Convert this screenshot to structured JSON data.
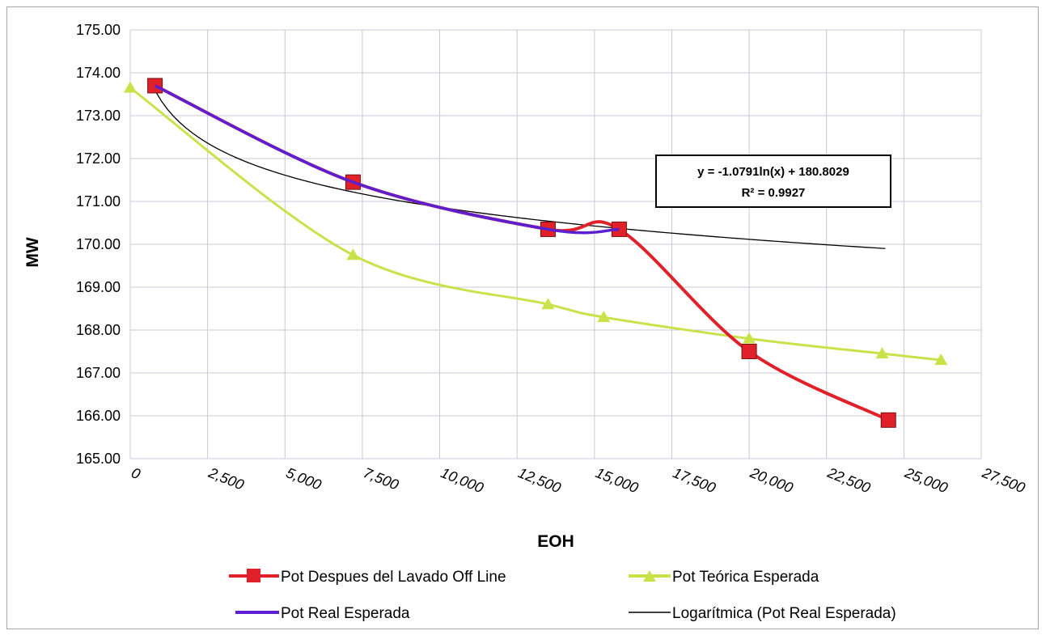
{
  "chart_data": {
    "type": "line",
    "xlabel": "EOH",
    "ylabel": "MW",
    "xlim": [
      0,
      27500
    ],
    "ylim": [
      165,
      175
    ],
    "x_ticks": [
      "0",
      "2,500",
      "5,000",
      "7,500",
      "10,000",
      "12,500",
      "15,000",
      "17,500",
      "20,000",
      "22,500",
      "25,000",
      "27,500"
    ],
    "y_ticks": [
      "165.00",
      "166.00",
      "167.00",
      "168.00",
      "169.00",
      "170.00",
      "171.00",
      "172.00",
      "173.00",
      "174.00",
      "175.00"
    ],
    "grid": true,
    "legend_position": "bottom",
    "series": [
      {
        "name": "Pot Despues del Lavado Off Line",
        "color": "#e0212a",
        "marker": "square",
        "x": [
          800,
          7200,
          13500,
          15800,
          20000,
          24500
        ],
        "y": [
          173.7,
          171.45,
          170.35,
          170.35,
          167.5,
          165.9
        ]
      },
      {
        "name": "Pot Teórica Esperada",
        "color": "#c9e24a",
        "marker": "triangle",
        "x": [
          0,
          7200,
          13500,
          15300,
          20000,
          24300,
          26200
        ],
        "y": [
          173.65,
          169.75,
          168.6,
          168.3,
          167.8,
          167.45,
          167.3
        ]
      },
      {
        "name": "Pot Real Esperada",
        "color": "#5b1fd1",
        "marker": "none",
        "x": [
          800,
          7200,
          13500,
          15800
        ],
        "y": [
          173.7,
          171.45,
          170.35,
          170.35
        ]
      },
      {
        "name": "Logarítmica (Pot Real Esperada)",
        "color": "#000000",
        "marker": "none",
        "trendline": {
          "a": -1.0791,
          "b": 180.8029,
          "x_from": 800,
          "x_to": 24500
        }
      }
    ],
    "annotations": [
      {
        "line1": "y = -1.0791ln(x) + 180.8029",
        "line2": "R² = 0.9927"
      }
    ]
  }
}
